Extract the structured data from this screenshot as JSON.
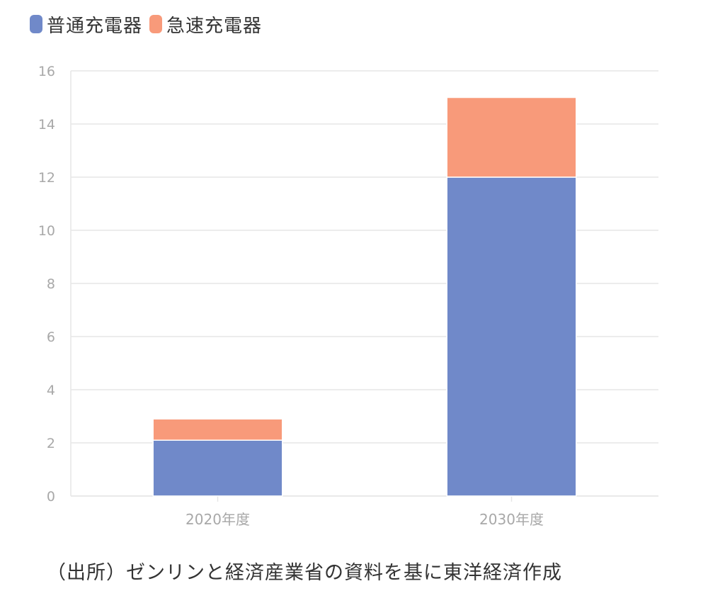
{
  "chart_data": {
    "type": "bar",
    "stacked": true,
    "categories": [
      "2020年度",
      "2030年度"
    ],
    "series": [
      {
        "name": "普通充電器",
        "color": "#7089c9",
        "values": [
          2.1,
          12.0
        ]
      },
      {
        "name": "急速充電器",
        "color": "#f89a7a",
        "values": [
          0.8,
          3.0
        ]
      }
    ],
    "ylim": [
      0,
      16
    ],
    "yticks": [
      0,
      2,
      4,
      6,
      8,
      10,
      12,
      14,
      16
    ],
    "grid": true,
    "legend_position": "top-left",
    "title": "",
    "xlabel": "",
    "ylabel": ""
  },
  "source_note": "（出所）ゼンリンと経済産業省の資料を基に東洋経済作成"
}
